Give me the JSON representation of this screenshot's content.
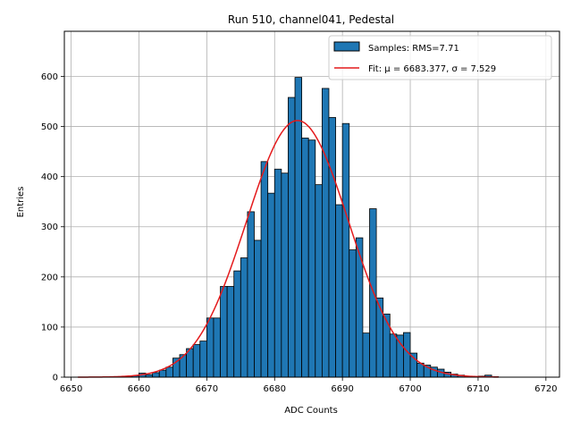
{
  "chart_data": {
    "type": "bar",
    "title": "Run 510, channel041, Pedestal",
    "xlabel": "ADC Counts",
    "ylabel": "Entries",
    "xlim": [
      6649,
      6722
    ],
    "ylim": [
      0,
      690
    ],
    "xticks": [
      6650,
      6660,
      6670,
      6680,
      6690,
      6700,
      6710,
      6720
    ],
    "yticks": [
      0,
      100,
      200,
      300,
      400,
      500,
      600
    ],
    "grid": true,
    "legend_position": "top-right",
    "bin_width": 1,
    "histogram": {
      "name": "Samples: RMS=7.71",
      "color": "#1f77b4",
      "edge_color": "#000000",
      "bins": [
        6651,
        6652,
        6653,
        6654,
        6655,
        6656,
        6657,
        6658,
        6659,
        6660,
        6661,
        6662,
        6663,
        6664,
        6665,
        6666,
        6667,
        6668,
        6669,
        6670,
        6671,
        6672,
        6673,
        6674,
        6675,
        6676,
        6677,
        6678,
        6679,
        6680,
        6681,
        6682,
        6683,
        6684,
        6685,
        6686,
        6687,
        6688,
        6689,
        6690,
        6691,
        6692,
        6693,
        6694,
        6695,
        6696,
        6697,
        6698,
        6699,
        6700,
        6701,
        6702,
        6703,
        6704,
        6705,
        6706,
        6707,
        6708,
        6709,
        6710,
        6711,
        6712
      ],
      "values": [
        0,
        0,
        0,
        0,
        0,
        0,
        0,
        1,
        3,
        8,
        5,
        9,
        14,
        20,
        38,
        45,
        57,
        65,
        72,
        118,
        118,
        181,
        181,
        212,
        238,
        330,
        273,
        430,
        367,
        415,
        407,
        558,
        598,
        477,
        473,
        384,
        576,
        518,
        344,
        506,
        254,
        278,
        88,
        336,
        158,
        126,
        86,
        84,
        89,
        48,
        28,
        24,
        20,
        16,
        10,
        6,
        4,
        1,
        1,
        2,
        4,
        1
      ]
    },
    "fit": {
      "name": "Fit: μ = 6683.377, σ = 7.529",
      "color": "#e41a1c",
      "mu": 6683.377,
      "sigma": 7.529,
      "amplitude": 512,
      "x_range": [
        6651,
        6713
      ]
    }
  }
}
